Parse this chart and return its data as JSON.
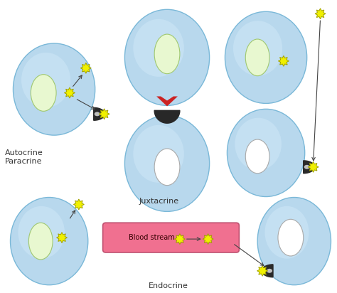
{
  "bg_color": "#ffffff",
  "cell_color_light": "#b8d8ed",
  "cell_color_grad_center": "#d0e8f8",
  "cell_edge_color": "#7ab8d8",
  "nucleus_green_color": "#e8f8d0",
  "nucleus_green_edge": "#a0c870",
  "nucleus_white_color": "#ffffff",
  "nucleus_white_edge": "#aaaaaa",
  "ligand_color": "#f0f000",
  "ligand_edge": "#a0a000",
  "receptor_color": "#2a2a2a",
  "receptor_highlight": "#cc2222",
  "blood_vessel_color": "#f07090",
  "blood_vessel_edge": "#c05070",
  "arrow_color": "#444444",
  "labels": {
    "autocrine_paracrine": "Autocrine\nParacrine",
    "juxtacrine": "Juxtacrine",
    "endocrine": "Endocrine",
    "blood_stream": "Blood stream"
  },
  "label_fontsize": 8,
  "label_color": "#333333"
}
